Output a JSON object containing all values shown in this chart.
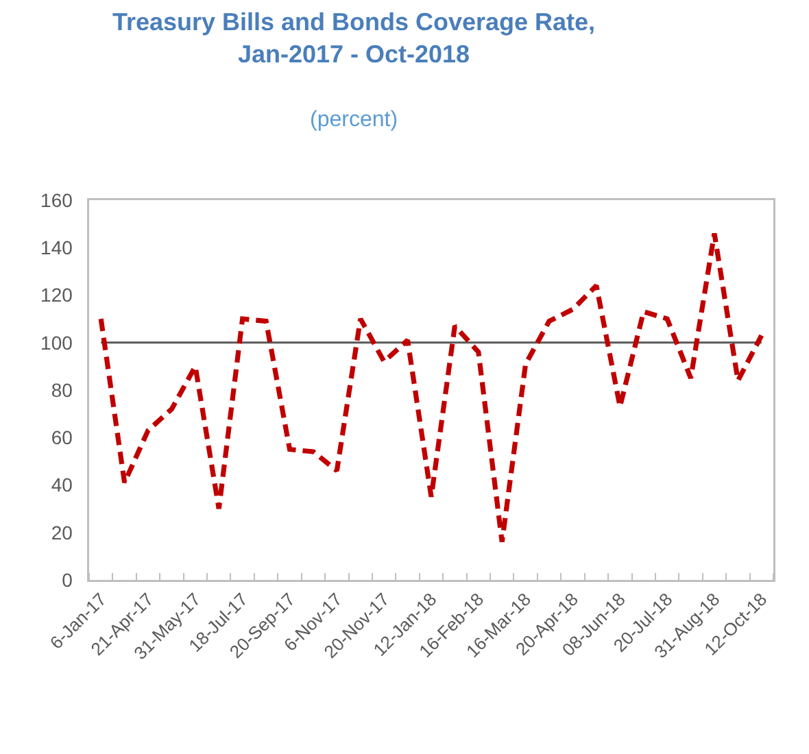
{
  "chart_data": {
    "type": "line",
    "title": "Treasury Bills and Bonds Coverage Rate, Jan-2017 - Oct-2018",
    "subtitle": "(percent)",
    "categories": [
      "6-Jan-17",
      null,
      "21-Apr-17",
      null,
      "31-May-17",
      null,
      "18-Jul-17",
      null,
      "20-Sep-17",
      null,
      "6-Nov-17",
      null,
      "20-Nov-17",
      null,
      "12-Jan-18",
      null,
      "16-Feb-18",
      null,
      "16-Mar-18",
      null,
      "20-Apr-18",
      null,
      "08-Jun-18",
      null,
      "20-Jul-18",
      null,
      "31-Aug-18",
      null,
      "12-Oct-18"
    ],
    "values": [
      110,
      41,
      63,
      72,
      90,
      30,
      110,
      109,
      55,
      54,
      46,
      110,
      92,
      101,
      35,
      107,
      96,
      16,
      91,
      109,
      114,
      124,
      73,
      113,
      110,
      85,
      146,
      84,
      103
    ],
    "color": "#c00000",
    "line_style": "dashed",
    "marker": "none",
    "grid": false,
    "ylim": [
      0,
      160
    ],
    "yticks": [
      0,
      20,
      40,
      60,
      80,
      100,
      120,
      140,
      160
    ],
    "ref_lines": [
      {
        "axis": "y",
        "value": 100,
        "color": "#595959"
      }
    ]
  }
}
